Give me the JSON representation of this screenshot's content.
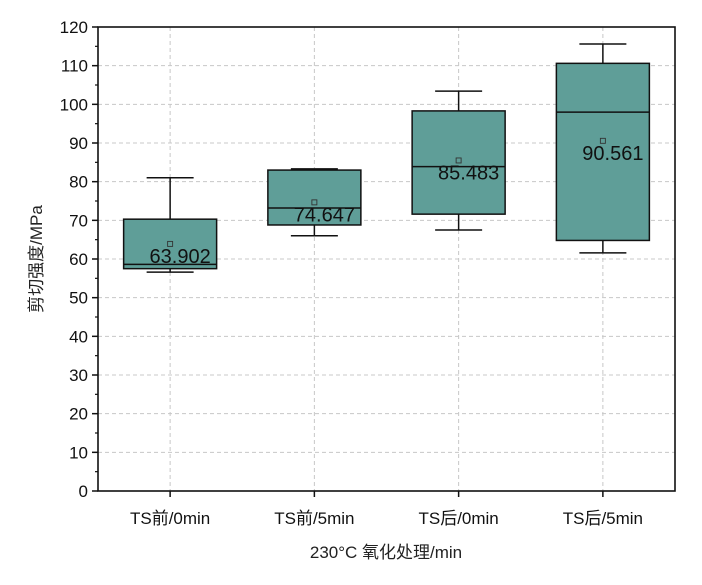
{
  "chart_data": {
    "type": "box",
    "title": "",
    "xlabel": "230°C 氧化处理/min",
    "ylabel": "剪切强度/MPa",
    "ylim": [
      0,
      120
    ],
    "yticks": [
      0,
      10,
      20,
      30,
      40,
      50,
      60,
      70,
      80,
      90,
      100,
      110,
      120
    ],
    "ytick_labels": [
      "0",
      "10",
      "20",
      "30",
      "40",
      "50",
      "60",
      "70",
      "80",
      "90",
      "100",
      "110",
      "120"
    ],
    "grid": true,
    "legend": "none",
    "fill_color": "#5f9e98",
    "categories": [
      "TS前/0min",
      "TS前/5min",
      "TS后/0min",
      "TS后/5min"
    ],
    "boxes": [
      {
        "category": "TS前/0min",
        "whisker_low": 56.6,
        "q1": 57.5,
        "median": 58.6,
        "q3": 70.3,
        "whisker_high": 81.0,
        "mean": 63.902,
        "mean_label": "63.902"
      },
      {
        "category": "TS前/5min",
        "whisker_low": 66.0,
        "q1": 68.8,
        "median": 73.2,
        "q3": 83.0,
        "whisker_high": 83.3,
        "mean": 74.647,
        "mean_label": "74.647"
      },
      {
        "category": "TS后/0min",
        "whisker_low": 67.5,
        "q1": 71.6,
        "median": 83.9,
        "q3": 98.3,
        "whisker_high": 103.4,
        "mean": 85.483,
        "mean_label": "85.483"
      },
      {
        "category": "TS后/5min",
        "whisker_low": 61.6,
        "q1": 64.8,
        "median": 98.0,
        "q3": 110.6,
        "whisker_high": 115.6,
        "mean": 90.561,
        "mean_label": "90.561"
      }
    ]
  }
}
